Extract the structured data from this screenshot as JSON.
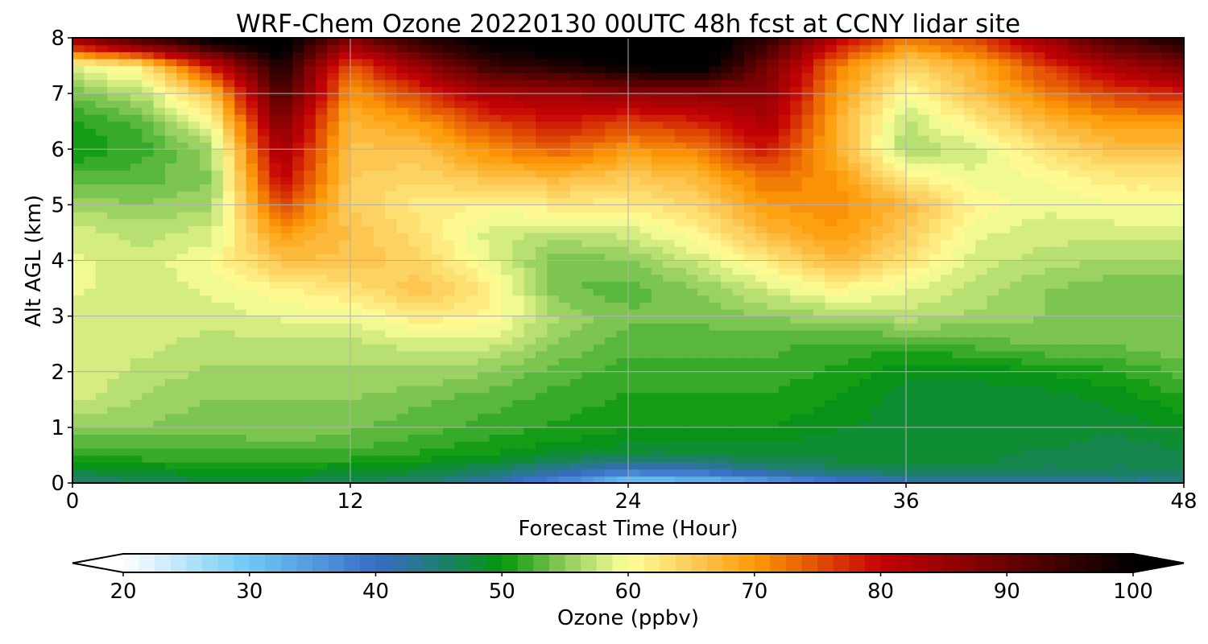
{
  "chart_data": {
    "type": "heatmap",
    "title": "WRF-Chem Ozone  20220130 00UTC 48h fcst at CCNY lidar site",
    "xlabel": "Forecast Time (Hour)",
    "ylabel": "Alt AGL (km)",
    "xlim": [
      0,
      48
    ],
    "ylim": [
      0,
      8
    ],
    "xticks": [
      0,
      12,
      24,
      36,
      48
    ],
    "yticks": [
      0,
      1,
      2,
      3,
      4,
      5,
      6,
      7,
      8
    ],
    "grid": true,
    "x": [
      0,
      3,
      6,
      9,
      12,
      15,
      18,
      21,
      24,
      27,
      30,
      33,
      36,
      39,
      42,
      45,
      48
    ],
    "y": [
      0,
      0.25,
      0.5,
      0.75,
      1,
      1.5,
      2,
      2.5,
      3,
      3.5,
      4,
      4.5,
      5,
      5.5,
      6,
      6.5,
      7,
      7.5,
      8
    ],
    "z": [
      [
        44,
        46,
        47,
        47,
        46,
        45,
        42,
        36,
        29,
        30,
        34,
        38,
        41,
        42,
        42,
        43,
        43
      ],
      [
        48,
        49,
        50,
        50,
        49,
        48,
        46,
        43,
        40,
        41,
        44,
        46,
        47,
        47,
        46,
        46,
        46
      ],
      [
        51,
        52,
        52,
        52,
        52,
        51,
        50,
        48,
        47,
        47,
        48,
        48,
        48,
        48,
        47,
        47,
        47
      ],
      [
        53,
        53,
        53,
        54,
        53,
        52,
        51,
        50,
        49,
        49,
        49,
        48,
        48,
        48,
        48,
        47,
        48
      ],
      [
        55,
        55,
        54,
        55,
        54,
        53,
        52,
        51,
        50,
        50,
        50,
        49,
        48,
        48,
        48,
        48,
        49
      ],
      [
        58,
        56,
        55,
        55,
        55,
        54,
        53,
        52,
        51,
        51,
        51,
        50,
        48,
        48,
        48,
        49,
        51
      ],
      [
        59,
        57,
        56,
        56,
        56,
        56,
        55,
        53,
        52,
        52,
        52,
        51,
        49,
        49,
        50,
        51,
        53
      ],
      [
        58,
        58,
        57,
        57,
        57,
        58,
        58,
        55,
        53,
        53,
        53,
        52,
        52,
        53,
        54,
        54,
        55
      ],
      [
        58,
        58,
        58,
        59,
        59,
        62,
        61,
        56,
        54,
        54,
        55,
        56,
        57,
        56,
        55,
        54,
        54
      ],
      [
        59,
        58,
        59,
        61,
        63,
        66,
        62,
        54,
        53,
        55,
        58,
        61,
        59,
        57,
        55,
        54,
        54
      ],
      [
        59,
        58,
        60,
        66,
        66,
        64,
        59,
        54,
        55,
        58,
        62,
        67,
        63,
        58,
        57,
        56,
        56
      ],
      [
        58,
        57,
        58,
        70,
        66,
        63,
        58,
        57,
        58,
        61,
        67,
        70,
        65,
        59,
        58,
        58,
        58
      ],
      [
        56,
        55,
        56,
        76,
        65,
        62,
        61,
        62,
        62,
        64,
        70,
        71,
        67,
        61,
        59,
        60,
        60
      ],
      [
        53,
        53,
        55,
        81,
        65,
        64,
        66,
        67,
        65,
        67,
        73,
        70,
        62,
        59,
        60,
        62,
        62
      ],
      [
        50,
        52,
        56,
        84,
        66,
        66,
        71,
        74,
        70,
        72,
        79,
        68,
        56,
        58,
        63,
        66,
        66
      ],
      [
        51,
        53,
        60,
        88,
        67,
        70,
        76,
        79,
        76,
        78,
        83,
        68,
        57,
        62,
        67,
        70,
        70
      ],
      [
        54,
        57,
        66,
        93,
        70,
        76,
        83,
        84,
        86,
        86,
        86,
        70,
        60,
        66,
        72,
        76,
        78
      ],
      [
        59,
        62,
        79,
        98,
        74,
        85,
        95,
        97,
        100,
        102,
        89,
        72,
        64,
        68,
        76,
        83,
        88
      ],
      [
        86,
        96,
        102,
        103,
        88,
        97,
        101,
        103,
        104,
        104,
        96,
        82,
        72,
        76,
        85,
        94,
        98
      ]
    ],
    "colorbar": {
      "label": "Ozone  (ppbv)",
      "ticks": [
        20,
        30,
        40,
        50,
        60,
        70,
        80,
        90,
        100
      ],
      "range": [
        20,
        100
      ],
      "extend": "both",
      "stops": [
        {
          "value": 20,
          "color": "#ffffff"
        },
        {
          "value": 30,
          "color": "#6ec9f4"
        },
        {
          "value": 40,
          "color": "#3a6cc6"
        },
        {
          "value": 45,
          "color": "#1f7d73"
        },
        {
          "value": 50,
          "color": "#03960b"
        },
        {
          "value": 55,
          "color": "#8dcc5a"
        },
        {
          "value": 60,
          "color": "#ffff9a"
        },
        {
          "value": 65,
          "color": "#fccc5a"
        },
        {
          "value": 70,
          "color": "#fd9a06"
        },
        {
          "value": 80,
          "color": "#c50205"
        },
        {
          "value": 90,
          "color": "#6a0202"
        },
        {
          "value": 100,
          "color": "#000000"
        }
      ]
    }
  }
}
